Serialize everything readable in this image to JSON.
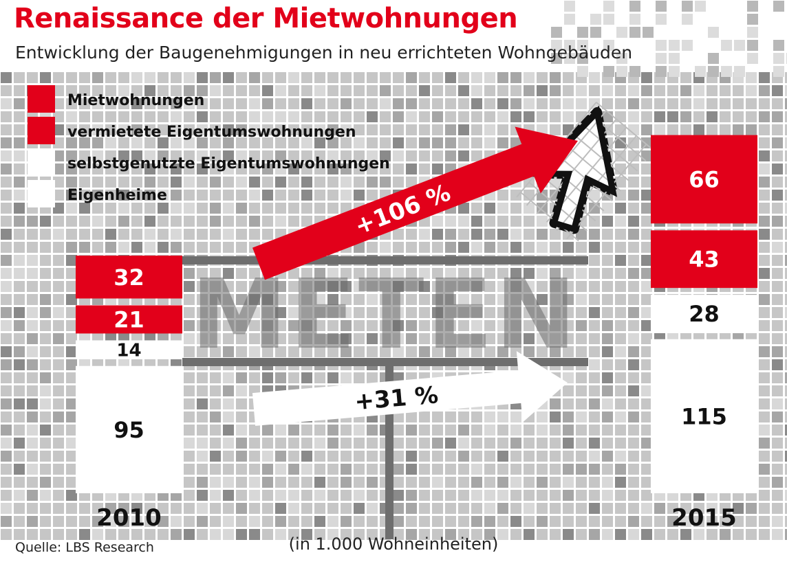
{
  "chart_data": {
    "type": "bar",
    "stacked": true,
    "title": "Renaissance der Mietwohnungen",
    "subtitle": "Entwicklung der Baugenehmigungen in neu errichteten Wohngebäuden",
    "unit_note": "(in 1.000 Wohneinheiten)",
    "source": "Quelle: LBS Research",
    "background_word": "METEN",
    "categories": [
      "2010",
      "2015"
    ],
    "series": [
      {
        "name": "Eigenheime",
        "values": [
          95,
          115
        ],
        "color": "#ffffff"
      },
      {
        "name": "selbstgenutzte Eigentumswohnungen",
        "values": [
          14,
          28
        ],
        "color": "#ffffff"
      },
      {
        "name": "vermietete Eigentumswohnungen",
        "values": [
          21,
          43
        ],
        "color": "#e2001a"
      },
      {
        "name": "Mietwohnungen",
        "values": [
          32,
          66
        ],
        "color": "#e2001a"
      }
    ],
    "legend_order": [
      "Mietwohnungen",
      "vermietete Eigentumswohnungen",
      "selbstgenutzte Eigentumswohnungen",
      "Eigenheime"
    ],
    "legend_position": "top-left",
    "annotations": [
      {
        "text": "+106 %",
        "color": "#e2001a"
      },
      {
        "text": "+31 %",
        "color": "#ffffff"
      }
    ]
  }
}
